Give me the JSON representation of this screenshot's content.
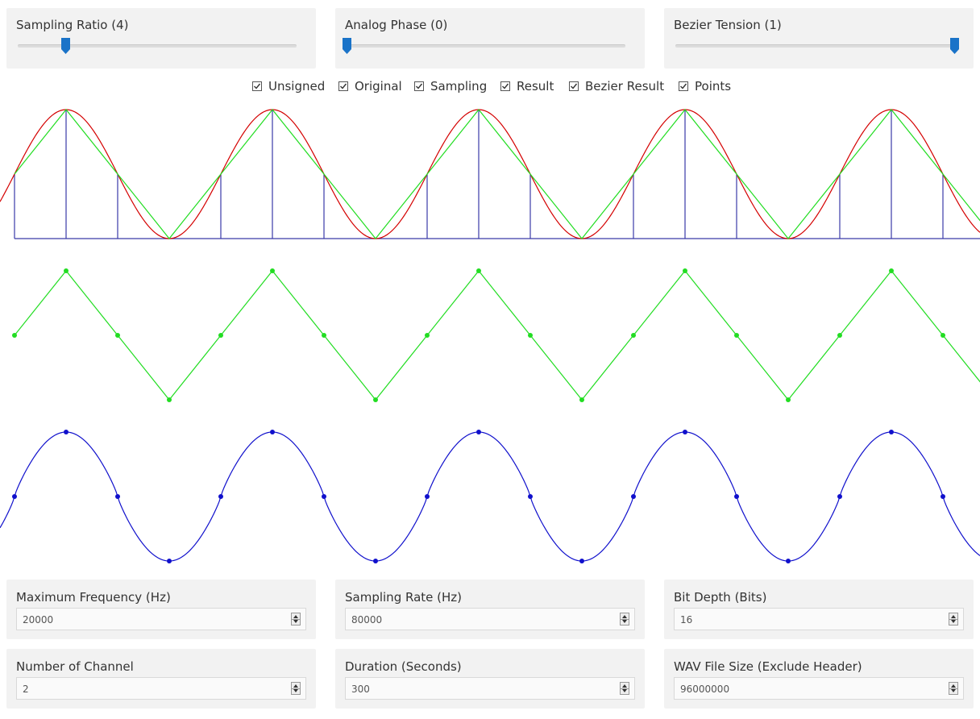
{
  "sliders": [
    {
      "label": "Sampling Ratio (4)",
      "level": 0.17
    },
    {
      "label": "Analog Phase (0)",
      "level": 0.0
    },
    {
      "label": "Bezier Tension (1)",
      "level": 1.0
    }
  ],
  "checkboxes": [
    {
      "label": "Unsigned",
      "checked": true
    },
    {
      "label": "Original",
      "checked": true
    },
    {
      "label": "Sampling",
      "checked": true
    },
    {
      "label": "Result",
      "checked": true
    },
    {
      "label": "Bezier Result",
      "checked": true
    },
    {
      "label": "Points",
      "checked": true
    }
  ],
  "colors": {
    "accent": "#1a73c8",
    "original": "#d40000",
    "sampling": "#3a3aa8",
    "result": "#22dd22",
    "bezier": "#1010cc"
  },
  "inputs": [
    {
      "label": "Maximum Frequency (Hz)",
      "value": "20000"
    },
    {
      "label": "Sampling Rate (Hz)",
      "value": "80000"
    },
    {
      "label": "Bit Depth (Bits)",
      "value": "16"
    },
    {
      "label": "Number of Channel",
      "value": "2"
    },
    {
      "label": "Duration (Seconds)",
      "value": "300"
    },
    {
      "label": "WAV File Size (Exclude Header)",
      "value": "96000000"
    }
  ],
  "icons": {
    "slider_thumb": "slider-thumb-icon",
    "checkbox": "checkmark-icon",
    "spinner": "spinner-arrows-icon"
  }
}
